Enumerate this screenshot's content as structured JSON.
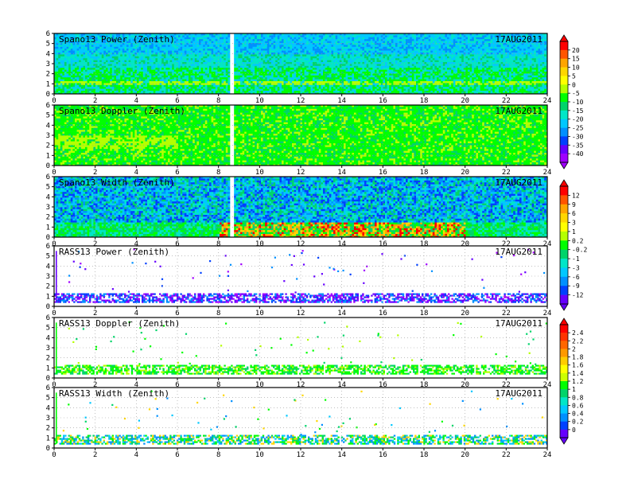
{
  "chart_data": [
    {
      "type": "heatmap",
      "title": "Spano13 Power (Zenith)",
      "date": "17AUG2011",
      "xlim": [
        0,
        24
      ],
      "ylim": [
        0,
        6
      ],
      "x_ticks": [
        "0",
        "2",
        "4",
        "6",
        "8",
        "10",
        "12",
        "14",
        "16",
        "18",
        "20",
        "22",
        "24"
      ],
      "y_ticks": [
        "0",
        "1",
        "2",
        "3",
        "4",
        "5",
        "6"
      ],
      "grid": true,
      "fill": "dense",
      "colorbar": "A"
    },
    {
      "type": "heatmap",
      "title": "Spano13 Doppler (Zenith)",
      "date": "17AUG2011",
      "xlim": [
        0,
        24
      ],
      "ylim": [
        0,
        6
      ],
      "x_ticks": [
        "0",
        "2",
        "4",
        "6",
        "8",
        "10",
        "12",
        "14",
        "16",
        "18",
        "20",
        "22",
        "24"
      ],
      "y_ticks": [
        "0",
        "1",
        "2",
        "3",
        "4",
        "5",
        "6"
      ],
      "grid": true,
      "fill": "dense",
      "colorbar": "A"
    },
    {
      "type": "heatmap",
      "title": "Spano13 Width (Zenith)",
      "date": "17AUG2011",
      "xlim": [
        0,
        24
      ],
      "ylim": [
        0,
        6
      ],
      "x_ticks": [
        "0",
        "2",
        "4",
        "6",
        "8",
        "10",
        "12",
        "14",
        "16",
        "18",
        "20",
        "22",
        "24"
      ],
      "y_ticks": [
        "0",
        "1",
        "2",
        "3",
        "4",
        "5",
        "6"
      ],
      "grid": true,
      "fill": "dense",
      "colorbar": "B"
    },
    {
      "type": "heatmap",
      "title": "RASS13 Power (Zenith)",
      "date": "17AUG2011",
      "xlim": [
        0,
        24
      ],
      "ylim": [
        0,
        6
      ],
      "x_ticks": [
        "0",
        "2",
        "4",
        "6",
        "8",
        "10",
        "12",
        "14",
        "16",
        "18",
        "20",
        "22",
        "24"
      ],
      "y_ticks": [
        "0",
        "1",
        "2",
        "3",
        "4",
        "5",
        "6"
      ],
      "grid": true,
      "fill": "sparse",
      "colorbar": "B"
    },
    {
      "type": "heatmap",
      "title": "RASS13 Doppler (Zenith)",
      "date": "17AUG2011",
      "xlim": [
        0,
        24
      ],
      "ylim": [
        0,
        6
      ],
      "x_ticks": [
        "0",
        "2",
        "4",
        "6",
        "8",
        "10",
        "12",
        "14",
        "16",
        "18",
        "20",
        "22",
        "24"
      ],
      "y_ticks": [
        "0",
        "1",
        "2",
        "3",
        "4",
        "5",
        "6"
      ],
      "grid": true,
      "fill": "sparse",
      "colorbar": "C"
    },
    {
      "type": "heatmap",
      "title": "RASS13 Width (Zenith)",
      "date": "17AUG2011",
      "xlim": [
        0,
        24
      ],
      "ylim": [
        0,
        6
      ],
      "x_ticks": [
        "0",
        "2",
        "4",
        "6",
        "8",
        "10",
        "12",
        "14",
        "16",
        "18",
        "20",
        "22",
        "24"
      ],
      "y_ticks": [
        "0",
        "1",
        "2",
        "3",
        "4",
        "5",
        "6"
      ],
      "grid": true,
      "fill": "sparse",
      "colorbar": "C"
    }
  ],
  "colorbars": {
    "A": {
      "labels": [
        "20",
        "15",
        "10",
        "5",
        "0",
        "-5",
        "-10",
        "-15",
        "-20",
        "-25",
        "-30",
        "-35",
        "-40"
      ],
      "colors": [
        "#ff0000",
        "#ff5500",
        "#ffa500",
        "#ffd700",
        "#ffff00",
        "#b4ff00",
        "#00ff00",
        "#00d46a",
        "#00e6c8",
        "#00c8ff",
        "#0090ff",
        "#0040ff",
        "#6600ff",
        "#a000ff"
      ]
    },
    "B": {
      "labels": [
        "12",
        "9",
        "6",
        "3",
        "1",
        "0.2",
        "-0.2",
        "-1",
        "-3",
        "-6",
        "-9",
        "-12"
      ],
      "colors": [
        "#ff0000",
        "#ff5500",
        "#ffa500",
        "#ffd700",
        "#ffff00",
        "#b4ff00",
        "#00ff00",
        "#00d46a",
        "#00e6c8",
        "#00c8ff",
        "#0090ff",
        "#0040ff",
        "#6600ff"
      ]
    },
    "C": {
      "labels": [
        "2.4",
        "2.2",
        "2",
        "1.8",
        "1.6",
        "1.4",
        "1.2",
        "1",
        "0.8",
        "0.6",
        "0.4",
        "0.2",
        "0"
      ],
      "colors": [
        "#ff0000",
        "#ff3300",
        "#ff6600",
        "#ff9900",
        "#ffcc00",
        "#ffff00",
        "#ccff00",
        "#00ff00",
        "#00d46a",
        "#00e6c8",
        "#00c8ff",
        "#0090ff",
        "#0040ff",
        "#6600ff"
      ]
    }
  }
}
